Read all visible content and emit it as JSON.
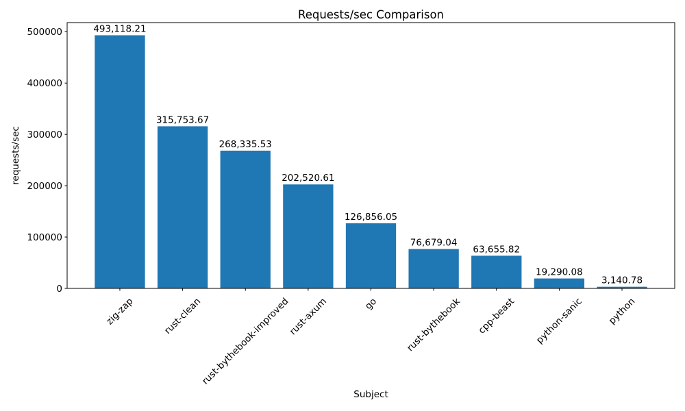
{
  "chart_data": {
    "type": "bar",
    "title": "Requests/sec Comparison",
    "xlabel": "Subject",
    "ylabel": "requests/sec",
    "categories": [
      "zig-zap",
      "rust-clean",
      "rust-bythebook-improved",
      "rust-axum",
      "go",
      "rust-bythebook",
      "cpp-beast",
      "python-sanic",
      "python"
    ],
    "values": [
      493118.21,
      315753.67,
      268335.53,
      202520.61,
      126856.05,
      76679.04,
      63655.82,
      19290.08,
      3140.78
    ],
    "bar_labels": [
      "493,118.21",
      "315,753.67",
      "268,335.53",
      "202,520.61",
      "126,856.05",
      "76,679.04",
      "63,655.82",
      "19,290.08",
      "3,140.78"
    ],
    "ytick_values": [
      0,
      100000,
      200000,
      300000,
      400000,
      500000
    ],
    "ytick_labels": [
      "0",
      "100000",
      "200000",
      "300000",
      "400000",
      "500000"
    ],
    "ylim": [
      0,
      517774
    ],
    "bar_color": "#1f77b4",
    "text_color": "#000000",
    "grid": false,
    "legend_position": "none",
    "x_tick_rotation_deg": 45
  }
}
